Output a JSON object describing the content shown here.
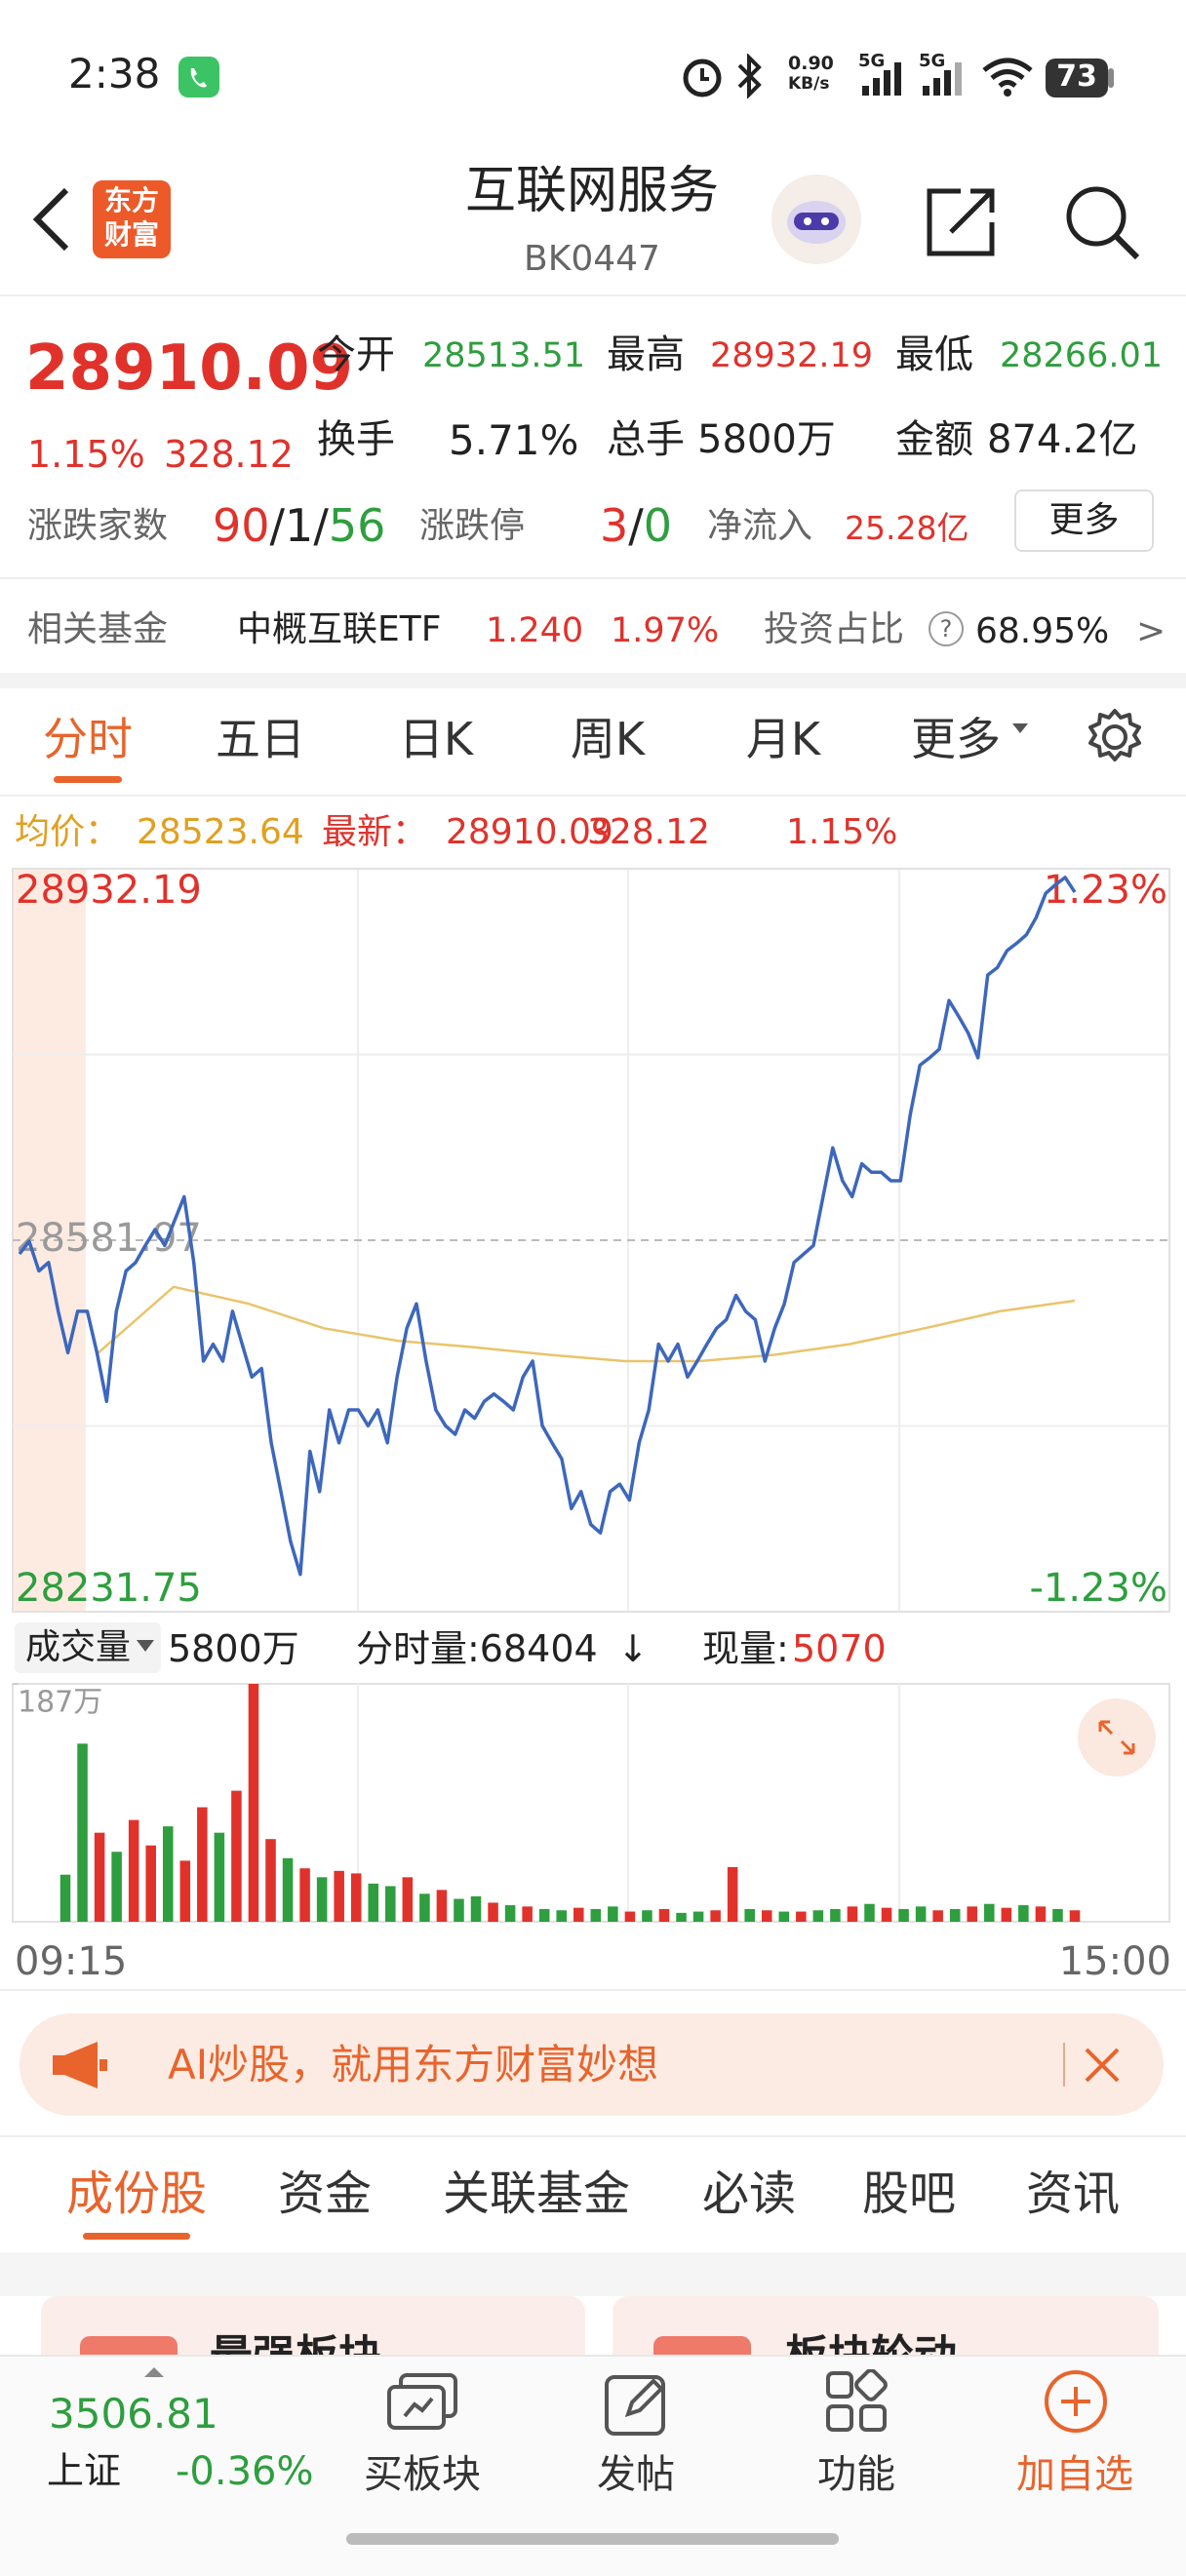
{
  "status_bar": {
    "time": "2:38",
    "net_speed": "0.90",
    "net_unit": "KB/s",
    "signal_1": "5G",
    "signal_2": "5G",
    "battery": "73"
  },
  "header": {
    "logo_line1": "东方",
    "logo_line2": "财富",
    "title": "互联网服务",
    "code": "BK0447"
  },
  "quote": {
    "price": "28910.09",
    "change_pct": "1.15%",
    "change": "328.12",
    "stats": [
      {
        "label": "今开",
        "value": "28513.51"
      },
      {
        "label": "最高",
        "value": "28932.19"
      },
      {
        "label": "最低",
        "value": "28266.01"
      },
      {
        "label": "换手",
        "value": "5.71%"
      },
      {
        "label": "总手",
        "value": "5800万"
      },
      {
        "label": "金额",
        "value": "874.2亿"
      }
    ],
    "breadth": {
      "label": "涨跌家数",
      "up": "90",
      "slash": "/",
      "flat": "1",
      "down": "56"
    },
    "limit": {
      "label": "涨跌停",
      "up": "3",
      "slash": "/",
      "down": "0"
    },
    "net_inflow": {
      "label": "净流入",
      "value": "25.28亿"
    },
    "more_button": "更多"
  },
  "fund": {
    "label": "相关基金",
    "name": "中概互联ETF",
    "price": "1.240",
    "change_pct": "1.97%",
    "ratio_label": "投资占比",
    "help": "?",
    "ratio": "68.95%",
    "arrow": ">"
  },
  "chart_tabs": {
    "items": [
      "分时",
      "五日",
      "日K",
      "周K",
      "月K",
      "更多"
    ],
    "active": 0
  },
  "info_line": {
    "avg_label": "均价：",
    "avg": "28523.64",
    "last_label": "最新：",
    "last": "28910.09",
    "change": "328.12",
    "change_pct": "1.15%"
  },
  "intraday": {
    "type": "line",
    "price": {
      "color": "#3d67bd",
      "values": [
        28569,
        28581,
        28553,
        28561,
        28515,
        28476,
        28515,
        28515,
        28476,
        28430,
        28515,
        28553,
        28561,
        28577,
        28592,
        28577,
        28600,
        28623,
        28561,
        28468,
        28484,
        28468,
        28515,
        28484,
        28453,
        28461,
        28391,
        28345,
        28298,
        28267,
        28383,
        28345,
        28422,
        28391,
        28422,
        28422,
        28407,
        28422,
        28391,
        28453,
        28499,
        28522,
        28468,
        28422,
        28407,
        28399,
        28422,
        28414,
        28430,
        28437,
        28430,
        28422,
        28453,
        28468,
        28407,
        28391,
        28376,
        28329,
        28345,
        28314,
        28306,
        28345,
        28352,
        28337,
        28391,
        28422,
        28484,
        28468,
        28484,
        28453,
        28468,
        28484,
        28499,
        28507,
        28530,
        28515,
        28507,
        28468,
        28499,
        28522,
        28561,
        28569,
        28577,
        28623,
        28669,
        28638,
        28623,
        28654,
        28646,
        28646,
        28638,
        28638,
        28700,
        28747,
        28754,
        28762,
        28808,
        28793,
        28777,
        28754,
        28832,
        28839,
        28855,
        28862,
        28870,
        28886,
        28909,
        28917,
        28924,
        28910
      ]
    },
    "avg": {
      "color": "#e9c46a",
      "values": [
        28476,
        28538,
        28522,
        28499,
        28487,
        28481,
        28474,
        28468,
        28468,
        28474,
        28484,
        28499,
        28515,
        28525
      ]
    },
    "ylim": [
      28231.75,
      28932.19
    ],
    "yticks": [
      28932.19,
      28581.97,
      28231.75
    ],
    "y2lim": [
      -1.23,
      1.23
    ],
    "y2ticks": [
      {
        "value": 1.23,
        "label": "1.23%"
      },
      {
        "value": -1.23,
        "label": "-1.23%"
      }
    ],
    "xlabels": [
      "09:15",
      "15:00"
    ]
  },
  "volume": {
    "type": "bar",
    "selector": "成交量",
    "total": "5800万",
    "tick_volume_label": "分时量:68404",
    "arrow": "↓",
    "current_label": "现量:",
    "current": "5070",
    "values": [
      37,
      140,
      70,
      55,
      80,
      60,
      75,
      48,
      90,
      70,
      103,
      187,
      65,
      50,
      42,
      35,
      40,
      38,
      30,
      28,
      35,
      22,
      25,
      18,
      20,
      15,
      13,
      12,
      10,
      9,
      11,
      10,
      12,
      8,
      9,
      10,
      7,
      8,
      9,
      43,
      10,
      9,
      8,
      8,
      9,
      10,
      12,
      14,
      11,
      10,
      12,
      9,
      10,
      12,
      14,
      11,
      13,
      12,
      10,
      9
    ],
    "up": [
      false,
      false,
      true,
      false,
      true,
      true,
      false,
      true,
      true,
      false,
      true,
      true,
      true,
      false,
      true,
      false,
      true,
      true,
      false,
      false,
      true,
      false,
      true,
      false,
      false,
      true,
      false,
      true,
      false,
      false,
      true,
      false,
      false,
      true,
      false,
      true,
      false,
      false,
      true,
      true,
      false,
      true,
      false,
      true,
      false,
      false,
      true,
      false,
      true,
      false,
      false,
      true,
      false,
      true,
      false,
      true,
      false,
      true,
      false,
      true
    ],
    "up_color": "#e0322b",
    "down_color": "#2e9e3e",
    "ylim": [
      0,
      187
    ],
    "yticks": [
      {
        "value": 187,
        "label": "187万"
      }
    ]
  },
  "banner": {
    "text": "AI炒股，就用东方财富妙想"
  },
  "section_tabs": {
    "items": [
      "成份股",
      "资金",
      "关联基金",
      "必读",
      "股吧",
      "资讯"
    ],
    "active": 0
  },
  "cards": [
    "最强板块",
    "板块轮动"
  ],
  "bottom_nav": {
    "index_value": "3506.81",
    "index_name": "上证",
    "index_change": "-0.36%",
    "items": [
      "买板块",
      "发帖",
      "功能",
      "加自选"
    ]
  }
}
